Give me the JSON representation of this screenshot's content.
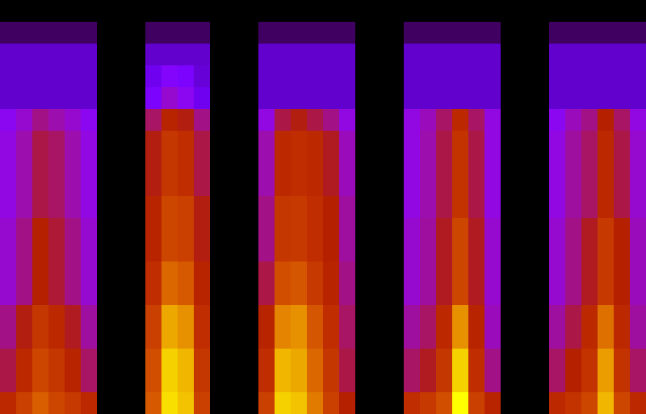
{
  "chart_data": {
    "type": "heatmap",
    "tick_labels": false,
    "cells": [
      [
        0,
        0,
        0,
        0,
        0,
        0,
        0,
        0,
        0,
        0,
        0,
        0,
        0,
        0,
        0,
        0,
        0,
        0,
        0,
        0,
        0,
        0,
        0,
        0,
        0,
        0,
        0,
        0,
        0,
        0,
        0,
        0,
        0,
        0,
        0,
        0,
        0,
        0,
        0,
        0
      ],
      [
        6,
        6,
        6,
        6,
        6,
        6,
        0,
        0,
        0,
        6,
        6,
        6,
        6,
        0,
        0,
        0,
        6,
        6,
        6,
        6,
        6,
        6,
        0,
        0,
        0,
        6,
        6,
        6,
        6,
        6,
        6,
        0,
        0,
        0,
        6,
        6,
        6,
        6,
        6,
        6
      ],
      [
        14,
        14,
        14,
        14,
        14,
        14,
        0,
        0,
        0,
        14,
        14,
        14,
        14,
        0,
        0,
        0,
        14,
        14,
        14,
        14,
        14,
        14,
        0,
        0,
        0,
        14,
        14,
        14,
        14,
        14,
        14,
        0,
        0,
        0,
        14,
        14,
        14,
        14,
        14,
        14
      ],
      [
        14,
        14,
        14,
        14,
        14,
        14,
        0,
        0,
        0,
        18,
        25,
        22,
        15,
        0,
        0,
        0,
        14,
        14,
        14,
        14,
        14,
        14,
        0,
        0,
        0,
        14,
        14,
        14,
        14,
        14,
        14,
        0,
        0,
        0,
        14,
        14,
        14,
        14,
        14,
        14
      ],
      [
        14,
        14,
        14,
        14,
        14,
        14,
        0,
        0,
        0,
        22,
        32,
        28,
        18,
        0,
        0,
        0,
        14,
        14,
        14,
        14,
        14,
        14,
        0,
        0,
        0,
        14,
        14,
        14,
        14,
        14,
        14,
        0,
        0,
        0,
        14,
        14,
        14,
        14,
        14,
        14
      ],
      [
        28,
        32,
        38,
        35,
        32,
        28,
        0,
        0,
        0,
        40,
        48,
        45,
        38,
        0,
        0,
        0,
        30,
        42,
        45,
        42,
        38,
        30,
        0,
        0,
        0,
        30,
        34,
        40,
        50,
        40,
        30,
        0,
        0,
        0,
        28,
        34,
        38,
        46,
        40,
        30
      ],
      [
        30,
        35,
        42,
        40,
        35,
        30,
        0,
        0,
        0,
        45,
        55,
        52,
        42,
        0,
        0,
        0,
        35,
        50,
        52,
        50,
        44,
        34,
        0,
        0,
        0,
        30,
        35,
        42,
        54,
        42,
        30,
        0,
        0,
        0,
        30,
        36,
        40,
        50,
        42,
        32
      ],
      [
        30,
        35,
        42,
        40,
        35,
        30,
        0,
        0,
        0,
        45,
        55,
        52,
        42,
        0,
        0,
        0,
        35,
        50,
        52,
        50,
        44,
        34,
        0,
        0,
        0,
        30,
        35,
        42,
        54,
        42,
        30,
        0,
        0,
        0,
        30,
        36,
        40,
        50,
        42,
        32
      ],
      [
        30,
        35,
        42,
        40,
        35,
        30,
        0,
        0,
        0,
        45,
        55,
        52,
        42,
        0,
        0,
        0,
        35,
        50,
        52,
        50,
        44,
        34,
        0,
        0,
        0,
        30,
        35,
        42,
        54,
        42,
        30,
        0,
        0,
        0,
        30,
        36,
        40,
        50,
        42,
        32
      ],
      [
        30,
        35,
        42,
        40,
        35,
        30,
        0,
        0,
        0,
        48,
        60,
        58,
        45,
        0,
        0,
        0,
        38,
        55,
        56,
        52,
        46,
        36,
        0,
        0,
        0,
        30,
        35,
        42,
        54,
        42,
        30,
        0,
        0,
        0,
        30,
        36,
        40,
        50,
        42,
        32
      ],
      [
        32,
        38,
        46,
        43,
        38,
        32,
        0,
        0,
        0,
        48,
        60,
        58,
        45,
        0,
        0,
        0,
        38,
        55,
        56,
        52,
        46,
        36,
        0,
        0,
        0,
        32,
        36,
        44,
        60,
        44,
        32,
        0,
        0,
        0,
        32,
        38,
        44,
        56,
        46,
        34
      ],
      [
        32,
        38,
        46,
        43,
        38,
        32,
        0,
        0,
        0,
        48,
        60,
        58,
        45,
        0,
        0,
        0,
        38,
        55,
        56,
        52,
        46,
        36,
        0,
        0,
        0,
        32,
        36,
        44,
        60,
        44,
        32,
        0,
        0,
        0,
        32,
        38,
        44,
        56,
        46,
        34
      ],
      [
        32,
        38,
        46,
        43,
        38,
        32,
        0,
        0,
        0,
        52,
        68,
        65,
        48,
        0,
        0,
        0,
        42,
        62,
        64,
        56,
        48,
        38,
        0,
        0,
        0,
        32,
        36,
        44,
        60,
        44,
        32,
        0,
        0,
        0,
        32,
        38,
        44,
        56,
        46,
        34
      ],
      [
        32,
        38,
        46,
        43,
        38,
        32,
        0,
        0,
        0,
        52,
        68,
        65,
        48,
        0,
        0,
        0,
        42,
        62,
        64,
        56,
        48,
        38,
        0,
        0,
        0,
        32,
        36,
        44,
        60,
        44,
        32,
        0,
        0,
        0,
        32,
        38,
        44,
        56,
        46,
        34
      ],
      [
        38,
        45,
        55,
        50,
        44,
        36,
        0,
        0,
        0,
        58,
        80,
        76,
        52,
        0,
        0,
        0,
        48,
        74,
        76,
        64,
        52,
        40,
        0,
        0,
        0,
        36,
        40,
        50,
        76,
        48,
        34,
        0,
        0,
        0,
        36,
        42,
        50,
        70,
        50,
        36
      ],
      [
        38,
        45,
        55,
        50,
        44,
        36,
        0,
        0,
        0,
        58,
        80,
        76,
        52,
        0,
        0,
        0,
        48,
        74,
        76,
        64,
        52,
        40,
        0,
        0,
        0,
        36,
        40,
        50,
        76,
        48,
        34,
        0,
        0,
        0,
        36,
        42,
        50,
        70,
        50,
        36
      ],
      [
        42,
        50,
        60,
        55,
        48,
        40,
        0,
        0,
        0,
        62,
        86,
        82,
        55,
        0,
        0,
        0,
        52,
        82,
        80,
        68,
        55,
        42,
        0,
        0,
        0,
        40,
        44,
        55,
        86,
        52,
        38,
        0,
        0,
        0,
        40,
        46,
        54,
        78,
        54,
        40
      ],
      [
        42,
        50,
        60,
        55,
        48,
        40,
        0,
        0,
        0,
        62,
        86,
        82,
        55,
        0,
        0,
        0,
        52,
        82,
        80,
        68,
        55,
        42,
        0,
        0,
        0,
        40,
        44,
        55,
        86,
        52,
        38,
        0,
        0,
        0,
        40,
        46,
        54,
        78,
        54,
        40
      ],
      [
        50,
        58,
        66,
        60,
        56,
        50,
        0,
        0,
        0,
        65,
        88,
        84,
        58,
        0,
        0,
        0,
        58,
        86,
        84,
        72,
        58,
        46,
        0,
        0,
        0,
        52,
        56,
        62,
        92,
        58,
        48,
        0,
        0,
        0,
        50,
        54,
        60,
        82,
        60,
        50
      ]
    ]
  }
}
